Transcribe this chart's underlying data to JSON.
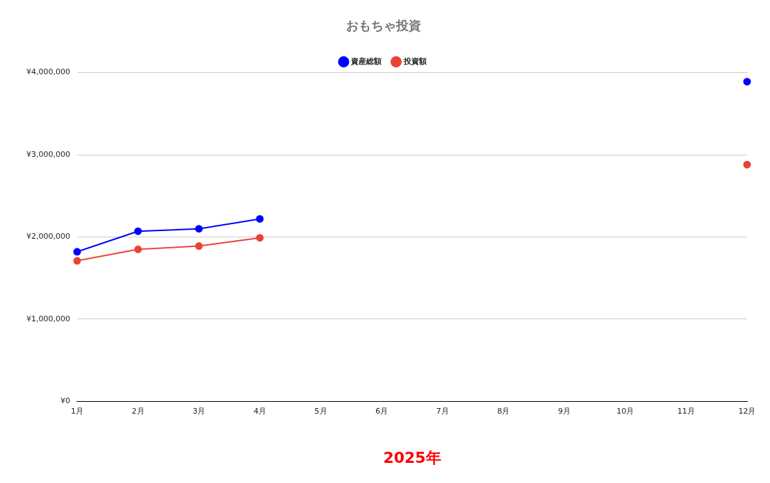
{
  "chart_data": {
    "type": "line",
    "title": "おもちゃ投資",
    "xlabel": "2025年",
    "categories": [
      "1月",
      "2月",
      "3月",
      "4月",
      "5月",
      "6月",
      "7月",
      "8月",
      "9月",
      "10月",
      "11月",
      "12月"
    ],
    "series": [
      {
        "name": "資産総額",
        "color": "#0000ff",
        "values": [
          1820000,
          2070000,
          2100000,
          2220000,
          null,
          null,
          null,
          null,
          null,
          null,
          null,
          3890000
        ]
      },
      {
        "name": "投資額",
        "color": "#ea4335",
        "values": [
          1710000,
          1850000,
          1890000,
          1990000,
          null,
          null,
          null,
          null,
          null,
          null,
          null,
          2880000
        ]
      }
    ],
    "ylim": [
      0,
      4000000
    ],
    "yticks": [
      {
        "value": 0,
        "label": "¥0"
      },
      {
        "value": 1000000,
        "label": "¥1,000,000"
      },
      {
        "value": 2000000,
        "label": "¥2,000,000"
      },
      {
        "value": 3000000,
        "label": "¥3,000,000"
      },
      {
        "value": 4000000,
        "label": "¥4,000,000"
      }
    ],
    "grid": "y",
    "legend": "top",
    "marker": "circle",
    "line_style": "solid"
  }
}
